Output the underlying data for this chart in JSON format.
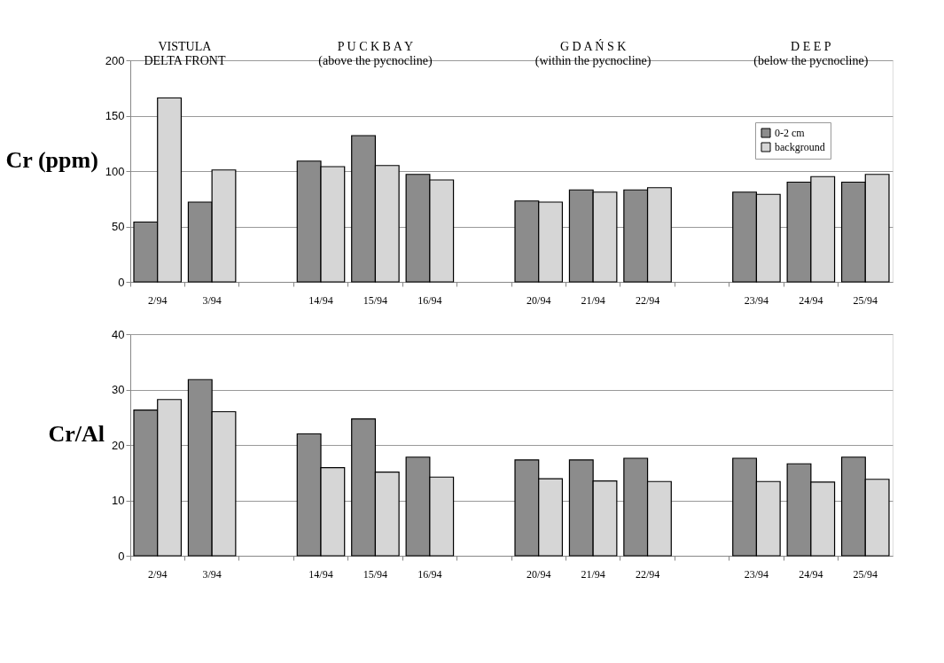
{
  "chart_data": [
    {
      "type": "bar",
      "ylabel": "Cr (ppm)",
      "categories": [
        "2/94",
        "3/94",
        null,
        "14/94",
        "15/94",
        "16/94",
        null,
        "20/94",
        "21/94",
        "22/94",
        null,
        "23/94",
        "24/94",
        "25/94"
      ],
      "series": [
        {
          "name": "0-2 cm",
          "color": "#8c8c8c",
          "values": [
            54,
            72,
            null,
            109,
            132,
            97,
            null,
            73,
            83,
            83,
            null,
            81,
            90,
            90
          ]
        },
        {
          "name": "background",
          "color": "#d6d6d6",
          "values": [
            166,
            101,
            null,
            104,
            105,
            92,
            null,
            72,
            81,
            85,
            null,
            79,
            95,
            97
          ]
        }
      ],
      "ylim": [
        0,
        200
      ],
      "yticks": [
        0,
        50,
        100,
        150,
        200
      ],
      "grid": "y",
      "legend": "top right",
      "annotations": [
        "VISTULA\nDELTA FRONT",
        "P U C K  B A Y\n(above the pycnocline)",
        "G D A Ń S K\n(within the pycnocline)",
        "D E E P\n(below the pycnocline)"
      ]
    },
    {
      "type": "bar",
      "ylabel": "Cr/Al",
      "categories": [
        "2/94",
        "3/94",
        null,
        "14/94",
        "15/94",
        "16/94",
        null,
        "20/94",
        "21/94",
        "22/94",
        null,
        "23/94",
        "24/94",
        "25/94"
      ],
      "series": [
        {
          "name": "0-2 cm",
          "color": "#8c8c8c",
          "values": [
            26.3,
            31.8,
            null,
            22,
            24.7,
            17.8,
            null,
            17.3,
            17.3,
            17.6,
            null,
            17.6,
            16.6,
            17.8
          ]
        },
        {
          "name": "background",
          "color": "#d6d6d6",
          "values": [
            28.2,
            26,
            null,
            15.9,
            15.1,
            14.2,
            null,
            13.9,
            13.5,
            13.4,
            null,
            13.4,
            13.3,
            13.8
          ]
        }
      ],
      "ylim": [
        0,
        40
      ],
      "yticks": [
        0,
        10,
        20,
        30,
        40
      ],
      "grid": "y",
      "legend": false
    }
  ]
}
